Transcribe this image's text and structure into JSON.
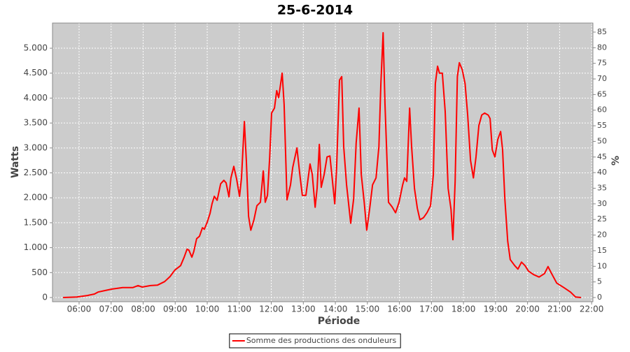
{
  "chart_data": {
    "type": "line",
    "title": "25-6-2014",
    "xlabel": "Période",
    "ylabel": "Watts",
    "y2label": "%",
    "x": [
      5.5,
      5.93,
      6.26,
      6.48,
      6.59,
      6.81,
      7.03,
      7.36,
      7.68,
      7.84,
      7.97,
      8.23,
      8.45,
      8.67,
      8.84,
      8.99,
      9.17,
      9.28,
      9.37,
      9.43,
      9.52,
      9.58,
      9.67,
      9.76,
      9.85,
      9.91,
      10.0,
      10.09,
      10.15,
      10.22,
      10.31,
      10.42,
      10.52,
      10.59,
      10.68,
      10.74,
      10.83,
      10.92,
      11.01,
      11.07,
      11.16,
      11.22,
      11.29,
      11.36,
      11.46,
      11.55,
      11.66,
      11.75,
      11.81,
      11.88,
      11.95,
      12.01,
      12.1,
      12.17,
      12.23,
      12.34,
      12.4,
      12.49,
      12.6,
      12.67,
      12.8,
      12.89,
      12.97,
      13.08,
      13.21,
      13.28,
      13.37,
      13.43,
      13.5,
      13.56,
      13.65,
      13.74,
      13.83,
      13.89,
      13.98,
      14.04,
      14.13,
      14.2,
      14.26,
      14.35,
      14.41,
      14.48,
      14.57,
      14.65,
      14.74,
      14.81,
      14.9,
      14.98,
      15.07,
      15.16,
      15.27,
      15.36,
      15.42,
      15.49,
      15.55,
      15.66,
      15.77,
      15.88,
      15.99,
      16.1,
      16.16,
      16.23,
      16.32,
      16.38,
      16.47,
      16.56,
      16.64,
      16.75,
      16.86,
      16.97,
      17.06,
      17.12,
      17.19,
      17.25,
      17.34,
      17.43,
      17.52,
      17.61,
      17.67,
      17.74,
      17.81,
      17.87,
      17.96,
      18.05,
      18.13,
      18.22,
      18.31,
      18.39,
      18.48,
      18.57,
      18.66,
      18.77,
      18.83,
      18.9,
      18.98,
      19.07,
      19.16,
      19.22,
      19.29,
      19.38,
      19.46,
      19.6,
      19.7,
      19.81,
      19.92,
      20.03,
      20.19,
      20.36,
      20.53,
      20.64,
      20.75,
      20.91,
      21.13,
      21.34,
      21.5,
      21.67
    ],
    "series": [
      {
        "name": "Somme des productions des onduleurs",
        "color": "#ff0000",
        "values": [
          0,
          10,
          40,
          70,
          110,
          140,
          170,
          200,
          200,
          240,
          210,
          240,
          250,
          320,
          420,
          550,
          640,
          810,
          970,
          950,
          810,
          920,
          1180,
          1230,
          1400,
          1370,
          1510,
          1690,
          1880,
          2030,
          1950,
          2280,
          2350,
          2300,
          2020,
          2400,
          2630,
          2370,
          2030,
          2400,
          3530,
          2750,
          1630,
          1350,
          1560,
          1840,
          1910,
          2540,
          1910,
          2050,
          2820,
          3700,
          3800,
          4150,
          4010,
          4500,
          3870,
          1960,
          2260,
          2610,
          3000,
          2470,
          2050,
          2050,
          2680,
          2470,
          1810,
          2190,
          3070,
          2210,
          2470,
          2820,
          2840,
          2470,
          1880,
          2610,
          4360,
          4430,
          3030,
          2260,
          1910,
          1490,
          1980,
          3100,
          3800,
          2470,
          1910,
          1350,
          1770,
          2260,
          2400,
          3030,
          4290,
          5310,
          3870,
          1910,
          1820,
          1700,
          1910,
          2260,
          2400,
          2330,
          3800,
          3030,
          2190,
          1790,
          1560,
          1600,
          1700,
          1840,
          2470,
          4290,
          4640,
          4500,
          4500,
          3730,
          2190,
          1770,
          1160,
          2330,
          4430,
          4710,
          4570,
          4290,
          3660,
          2750,
          2400,
          2820,
          3450,
          3660,
          3700,
          3660,
          3590,
          2960,
          2820,
          3170,
          3330,
          2960,
          1980,
          1130,
          760,
          640,
          570,
          710,
          640,
          530,
          460,
          410,
          480,
          620,
          480,
          290,
          200,
          110,
          10,
          0
        ]
      }
    ],
    "xlim": [
      5.17,
      22.04
    ],
    "xticks": [
      {
        "value": 6,
        "label": "06:00"
      },
      {
        "value": 7,
        "label": "07:00"
      },
      {
        "value": 8,
        "label": "08:00"
      },
      {
        "value": 9,
        "label": "09:00"
      },
      {
        "value": 10,
        "label": "10:00"
      },
      {
        "value": 11,
        "label": "11:00"
      },
      {
        "value": 12,
        "label": "12:00"
      },
      {
        "value": 13,
        "label": "13:00"
      },
      {
        "value": 14,
        "label": "14:00"
      },
      {
        "value": 15,
        "label": "15:00"
      },
      {
        "value": 16,
        "label": "16:00"
      },
      {
        "value": 17,
        "label": "17:00"
      },
      {
        "value": 18,
        "label": "18:00"
      },
      {
        "value": 19,
        "label": "19:00"
      },
      {
        "value": 20,
        "label": "20:00"
      },
      {
        "value": 21,
        "label": "21:00"
      },
      {
        "value": 22,
        "label": "22:00"
      }
    ],
    "ylim": [
      -84,
      5505
    ],
    "yticks": [
      0,
      500,
      {
        "value": 1000,
        "label": "1.000"
      },
      {
        "value": 1500,
        "label": "1.500"
      },
      {
        "value": 2000,
        "label": "2.000"
      },
      {
        "value": 2500,
        "label": "2.500"
      },
      {
        "value": 3000,
        "label": "3.000"
      },
      {
        "value": 3500,
        "label": "3.500"
      },
      {
        "value": 4000,
        "label": "4.000"
      },
      {
        "value": 4500,
        "label": "4.500"
      },
      {
        "value": 5000,
        "label": "5.000"
      }
    ],
    "y2lim": [
      -1.34,
      87.9
    ],
    "y2ticks": [
      0,
      5,
      10,
      15,
      20,
      25,
      30,
      35,
      40,
      45,
      50,
      55,
      60,
      65,
      70,
      75,
      80,
      85
    ],
    "grid": true,
    "plot_background": "#cccccc",
    "legend": "bottom"
  }
}
